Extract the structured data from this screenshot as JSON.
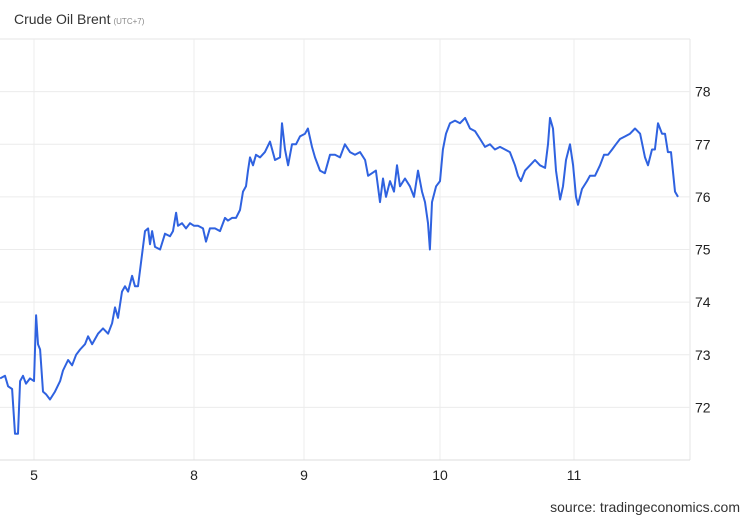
{
  "header": {
    "title": "Crude Oil Brent",
    "timezone": "(UTC+7)"
  },
  "source": "source: tradingeconomics.com",
  "chart_data": {
    "type": "line",
    "title": "Crude Oil Brent",
    "xlabel": "",
    "ylabel": "",
    "ylim": [
      71.0,
      79.0
    ],
    "grid": true,
    "line_color": "#2f62e0",
    "x_ticks": [
      5,
      8,
      9,
      10,
      11
    ],
    "x_tick_labels": [
      "5",
      "8",
      "9",
      "10",
      "11"
    ],
    "y_ticks": [
      72,
      73,
      74,
      75,
      76,
      77,
      78
    ],
    "y_tick_labels": [
      "72",
      "73",
      "74",
      "75",
      "76",
      "77",
      "78"
    ],
    "series": [
      {
        "x": [
          4.788,
          4.819,
          4.838,
          4.863,
          4.881,
          4.9,
          4.913,
          4.931,
          4.95,
          4.975,
          5.0,
          5.013,
          5.025,
          5.038,
          5.056,
          5.075,
          5.1,
          5.131,
          5.163,
          5.181,
          5.213,
          5.238,
          5.263,
          5.288,
          5.319,
          5.338,
          5.363,
          5.4,
          5.431,
          5.463,
          5.488,
          5.506,
          5.525,
          5.55,
          5.569,
          5.588,
          5.613,
          5.631,
          5.65,
          5.675,
          5.694,
          5.713,
          5.725,
          5.738,
          5.756,
          5.788,
          5.819,
          5.85,
          5.869,
          5.888,
          5.9,
          5.925,
          5.95,
          5.975,
          8.0,
          8.036,
          8.082,
          8.109,
          8.145,
          8.191,
          8.236,
          8.282,
          8.309,
          8.345,
          8.382,
          8.418,
          8.445,
          8.473,
          8.491,
          8.509,
          8.536,
          8.564,
          8.6,
          8.645,
          8.691,
          8.736,
          8.782,
          8.8,
          8.827,
          8.855,
          8.891,
          8.927,
          8.964,
          9.007,
          9.029,
          9.059,
          9.081,
          9.118,
          9.154,
          9.191,
          9.228,
          9.265,
          9.301,
          9.338,
          9.375,
          9.412,
          9.449,
          9.471,
          9.5,
          9.529,
          9.559,
          9.581,
          9.603,
          9.632,
          9.662,
          9.684,
          9.706,
          9.743,
          9.779,
          9.809,
          9.838,
          9.868,
          9.89,
          9.912,
          9.926,
          9.941,
          9.971,
          10.0,
          10.022,
          10.045,
          10.075,
          10.112,
          10.149,
          10.187,
          10.224,
          10.261,
          10.299,
          10.336,
          10.373,
          10.41,
          10.448,
          10.485,
          10.522,
          10.56,
          10.582,
          10.604,
          10.634,
          10.672,
          10.709,
          10.746,
          10.784,
          10.806,
          10.821,
          10.843,
          10.866,
          10.896,
          10.918,
          10.94,
          10.97,
          10.993,
          11.015,
          11.03,
          11.06,
          11.097,
          11.119,
          11.157,
          11.194,
          11.224,
          11.254,
          11.284,
          11.313,
          11.343,
          11.381,
          11.418,
          11.455,
          11.493,
          11.53,
          11.552,
          11.582,
          11.604,
          11.627,
          11.657,
          11.679,
          11.701,
          11.724,
          11.754,
          11.776
        ],
        "y": [
          72.55,
          72.6,
          72.4,
          72.35,
          71.5,
          71.5,
          72.5,
          72.6,
          72.45,
          72.55,
          72.5,
          73.75,
          73.2,
          73.1,
          72.3,
          72.25,
          72.15,
          72.3,
          72.5,
          72.7,
          72.9,
          72.8,
          73.0,
          73.1,
          73.2,
          73.35,
          73.2,
          73.4,
          73.5,
          73.4,
          73.6,
          73.9,
          73.7,
          74.2,
          74.3,
          74.2,
          74.5,
          74.3,
          74.3,
          74.9,
          75.35,
          75.4,
          75.1,
          75.35,
          75.05,
          75.0,
          75.3,
          75.25,
          75.35,
          75.7,
          75.45,
          75.5,
          75.4,
          75.5,
          75.45,
          75.45,
          75.4,
          75.15,
          75.4,
          75.4,
          75.35,
          75.6,
          75.55,
          75.6,
          75.6,
          75.75,
          76.1,
          76.2,
          76.5,
          76.75,
          76.6,
          76.8,
          76.75,
          76.85,
          77.05,
          76.7,
          76.75,
          77.4,
          76.9,
          76.6,
          77.0,
          77.0,
          77.15,
          77.2,
          77.3,
          76.95,
          76.75,
          76.5,
          76.45,
          76.8,
          76.8,
          76.75,
          77.0,
          76.85,
          76.8,
          76.85,
          76.7,
          76.4,
          76.45,
          76.5,
          75.9,
          76.35,
          76.0,
          76.3,
          76.1,
          76.6,
          76.2,
          76.35,
          76.2,
          76.0,
          76.5,
          76.1,
          75.9,
          75.5,
          75.0,
          75.9,
          76.2,
          76.3,
          76.9,
          77.2,
          77.4,
          77.45,
          77.4,
          77.5,
          77.3,
          77.25,
          77.1,
          76.95,
          77.0,
          76.9,
          76.95,
          76.9,
          76.85,
          76.6,
          76.4,
          76.3,
          76.5,
          76.6,
          76.7,
          76.6,
          76.55,
          77.0,
          77.5,
          77.3,
          76.5,
          75.95,
          76.2,
          76.7,
          77.0,
          76.6,
          76.0,
          75.85,
          76.15,
          76.3,
          76.4,
          76.4,
          76.6,
          76.8,
          76.8,
          76.9,
          77.0,
          77.1,
          77.15,
          77.2,
          77.3,
          77.2,
          76.75,
          76.6,
          76.9,
          76.9,
          77.4,
          77.2,
          77.2,
          76.85,
          76.85,
          76.1,
          76.0
        ]
      }
    ]
  }
}
